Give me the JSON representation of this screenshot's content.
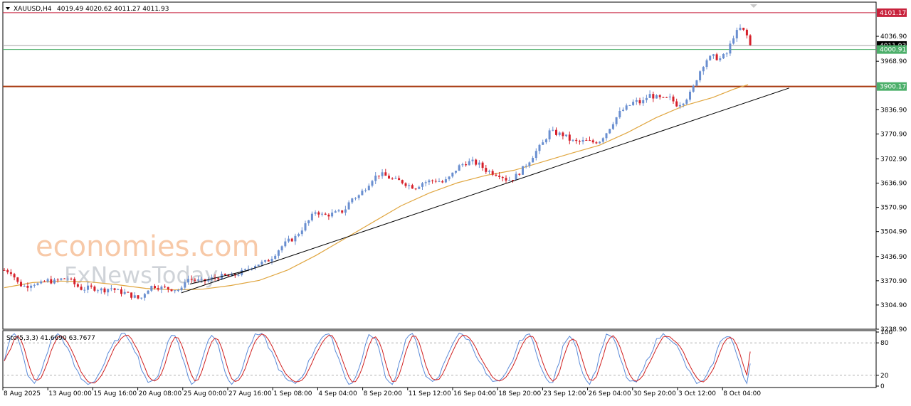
{
  "header": {
    "symbol": "XAUUSD,H4",
    "ohlc": "4019.49 4020.62 4011.27 4011.93"
  },
  "watermark": {
    "brand": "economies.com",
    "brand2": "FxNewsToday"
  },
  "colors": {
    "up": "#6a8fd0",
    "down": "#d6202a",
    "ma": "#e0a640",
    "trend": "#000000",
    "resistance": "#c8223c",
    "support": "#a83a10",
    "current": "#4caf6a",
    "stoch_main": "#5a8ad8",
    "stoch_signal": "#d02020"
  },
  "chart_data": [
    {
      "type": "candlestick",
      "symbol": "XAUUSD",
      "timeframe": "H4",
      "ylim": [
        3238.9,
        4130
      ],
      "yticks": [
        "4036.90",
        "3968.90",
        "3836.90",
        "3770.90",
        "3702.90",
        "3636.90",
        "3570.90",
        "3504.90",
        "3436.90",
        "3370.90",
        "3304.90",
        "3238.90"
      ],
      "xticks": [
        "8 Aug 2025",
        "13 Aug 00:00",
        "15 Aug 16:00",
        "20 Aug 08:00",
        "25 Aug 00:00",
        "27 Aug 16:00",
        "1 Sep 08:00",
        "4 Sep 04:00",
        "8 Sep 20:00",
        "11 Sep 12:00",
        "16 Sep 04:00",
        "18 Sep 20:00",
        "23 Sep 12:00",
        "26 Sep 04:00",
        "30 Sep 20:00",
        "3 Oct 12:00",
        "8 Oct 04:00"
      ],
      "levels": [
        {
          "name": "resistance",
          "value": 4101.17,
          "label": "4101.17"
        },
        {
          "name": "current",
          "value": 4011.93,
          "label": "4011.93"
        },
        {
          "name": "support-green",
          "value": 4000.91,
          "label": "4000.91"
        },
        {
          "name": "support",
          "value": 3900.17,
          "label": "3900.17"
        }
      ],
      "close_path": [
        [
          0,
          3400
        ],
        [
          10,
          3395
        ],
        [
          20,
          3362
        ],
        [
          30,
          3355
        ],
        [
          40,
          3365
        ],
        [
          50,
          3360
        ],
        [
          60,
          3372
        ],
        [
          70,
          3368
        ],
        [
          80,
          3375
        ],
        [
          90,
          3378
        ],
        [
          100,
          3360
        ],
        [
          110,
          3348
        ],
        [
          120,
          3352
        ],
        [
          130,
          3350
        ],
        [
          140,
          3345
        ],
        [
          150,
          3352
        ],
        [
          160,
          3342
        ],
        [
          170,
          3338
        ],
        [
          180,
          3330
        ],
        [
          190,
          3322
        ],
        [
          195,
          3326
        ],
        [
          200,
          3345
        ],
        [
          210,
          3358
        ],
        [
          220,
          3352
        ],
        [
          230,
          3350
        ],
        [
          240,
          3348
        ],
        [
          250,
          3345
        ],
        [
          255,
          3372
        ],
        [
          260,
          3376
        ],
        [
          270,
          3372
        ],
        [
          280,
          3368
        ],
        [
          290,
          3375
        ],
        [
          300,
          3380
        ],
        [
          310,
          3384
        ],
        [
          320,
          3382
        ],
        [
          330,
          3390
        ],
        [
          340,
          3398
        ],
        [
          350,
          3412
        ],
        [
          360,
          3418
        ],
        [
          370,
          3422
        ],
        [
          380,
          3440
        ],
        [
          390,
          3462
        ],
        [
          400,
          3478
        ],
        [
          410,
          3488
        ],
        [
          420,
          3512
        ],
        [
          430,
          3535
        ],
        [
          440,
          3562
        ],
        [
          450,
          3548
        ],
        [
          460,
          3552
        ],
        [
          470,
          3556
        ],
        [
          480,
          3562
        ],
        [
          490,
          3595
        ],
        [
          500,
          3602
        ],
        [
          510,
          3625
        ],
        [
          520,
          3650
        ],
        [
          530,
          3662
        ],
        [
          540,
          3655
        ],
        [
          550,
          3645
        ],
        [
          560,
          3642
        ],
        [
          570,
          3632
        ],
        [
          580,
          3625
        ],
        [
          590,
          3638
        ],
        [
          600,
          3642
        ],
        [
          610,
          3645
        ],
        [
          620,
          3638
        ],
        [
          630,
          3655
        ],
        [
          640,
          3680
        ],
        [
          650,
          3692
        ],
        [
          660,
          3695
        ],
        [
          670,
          3688
        ],
        [
          680,
          3672
        ],
        [
          690,
          3665
        ],
        [
          700,
          3660
        ],
        [
          710,
          3645
        ],
        [
          720,
          3652
        ],
        [
          730,
          3672
        ],
        [
          740,
          3695
        ],
        [
          750,
          3722
        ],
        [
          760,
          3745
        ],
        [
          770,
          3778
        ],
        [
          780,
          3772
        ],
        [
          790,
          3768
        ],
        [
          800,
          3752
        ],
        [
          810,
          3748
        ],
        [
          820,
          3752
        ],
        [
          830,
          3748
        ],
        [
          840,
          3752
        ],
        [
          850,
          3775
        ],
        [
          860,
          3805
        ],
        [
          870,
          3832
        ],
        [
          880,
          3845
        ],
        [
          890,
          3860
        ],
        [
          900,
          3855
        ],
        [
          910,
          3878
        ],
        [
          920,
          3870
        ],
        [
          930,
          3865
        ],
        [
          940,
          3868
        ],
        [
          950,
          3850
        ],
        [
          960,
          3862
        ],
        [
          970,
          3885
        ],
        [
          980,
          3935
        ],
        [
          990,
          3972
        ],
        [
          1000,
          3982
        ],
        [
          1010,
          3975
        ],
        [
          1020,
          3990
        ],
        [
          1030,
          4040
        ],
        [
          1040,
          4060
        ],
        [
          1048,
          4040
        ],
        [
          1053,
          4012
        ]
      ],
      "ma_path": [
        [
          0,
          3352
        ],
        [
          40,
          3366
        ],
        [
          80,
          3370
        ],
        [
          120,
          3368
        ],
        [
          160,
          3360
        ],
        [
          200,
          3350
        ],
        [
          240,
          3346
        ],
        [
          280,
          3348
        ],
        [
          320,
          3358
        ],
        [
          360,
          3372
        ],
        [
          400,
          3400
        ],
        [
          440,
          3440
        ],
        [
          480,
          3485
        ],
        [
          520,
          3530
        ],
        [
          560,
          3575
        ],
        [
          600,
          3610
        ],
        [
          640,
          3638
        ],
        [
          680,
          3658
        ],
        [
          720,
          3672
        ],
        [
          760,
          3695
        ],
        [
          800,
          3718
        ],
        [
          840,
          3740
        ],
        [
          880,
          3775
        ],
        [
          920,
          3815
        ],
        [
          960,
          3848
        ],
        [
          1000,
          3870
        ],
        [
          1030,
          3893
        ],
        [
          1050,
          3905
        ]
      ],
      "trendlines": [
        {
          "from": [
            250,
            3338
          ],
          "to": [
            1108,
            3896
          ]
        },
        {
          "from": [
            262,
            3362
          ],
          "to": [
            345,
            3400
          ]
        }
      ]
    },
    {
      "type": "line",
      "indicator_label": "Sto(5,3,3) 41.6690 63.7677",
      "ylim": [
        0,
        100
      ],
      "yticks": [
        "100",
        "80",
        "20",
        "0"
      ],
      "levels": [
        80,
        20
      ],
      "main_last": 41.669,
      "signal_last": 63.7677
    }
  ]
}
